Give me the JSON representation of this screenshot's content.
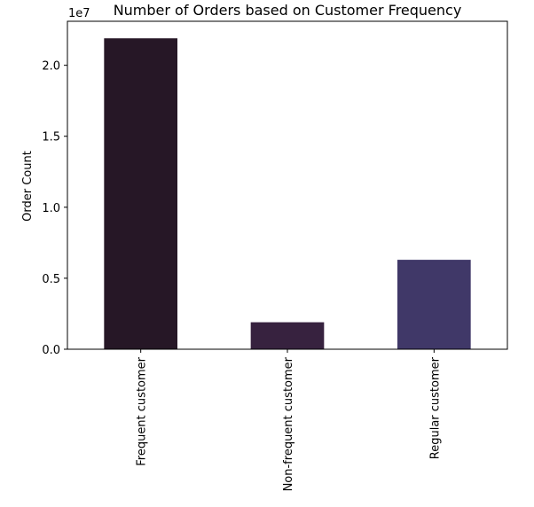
{
  "chart_data": {
    "type": "bar",
    "title": "Number of Orders based on Customer Frequency",
    "xlabel": "",
    "ylabel": "Order Count",
    "scale_note": "1e7",
    "categories": [
      "Frequent customer",
      "Non-frequent customer",
      "Regular customer"
    ],
    "values": [
      21900000,
      1900000,
      6300000
    ],
    "colors": [
      "#261726",
      "#37223f",
      "#403868"
    ],
    "ylim": [
      0,
      23100000
    ],
    "yticks": [
      0,
      5000000,
      10000000,
      15000000,
      20000000
    ],
    "ytick_labels": [
      "0.0",
      "0.5",
      "1.0",
      "1.5",
      "2.0"
    ],
    "grid": false,
    "legend": "none"
  }
}
